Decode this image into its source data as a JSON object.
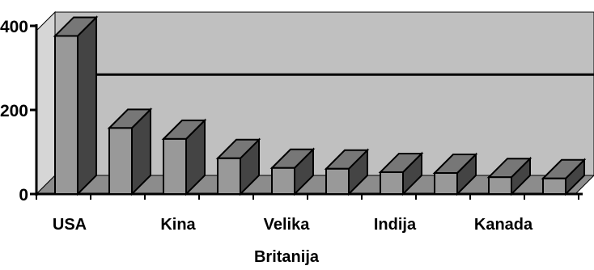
{
  "chart_data": {
    "type": "bar",
    "style": "3d-column",
    "categories": [
      "USA",
      "",
      "Kina",
      "",
      "Velika Britanija",
      "",
      "Indija",
      "",
      "Kanada",
      ""
    ],
    "values": [
      376,
      157,
      131,
      85,
      62,
      60,
      52,
      50,
      40,
      37
    ],
    "ylim": [
      0,
      400
    ],
    "yticks": [
      0,
      200,
      400
    ],
    "gridlines": [
      240
    ],
    "title": "",
    "xlabel": "",
    "ylabel": "",
    "legend": "none",
    "colors": {
      "bar_front": "#999999",
      "bar_side": "#444444",
      "bar_top": "#777777",
      "back_wall": "#c0c0c0",
      "side_wall": "#d6d6d6",
      "floor": "#8c8c8c",
      "line": "#000000"
    }
  }
}
